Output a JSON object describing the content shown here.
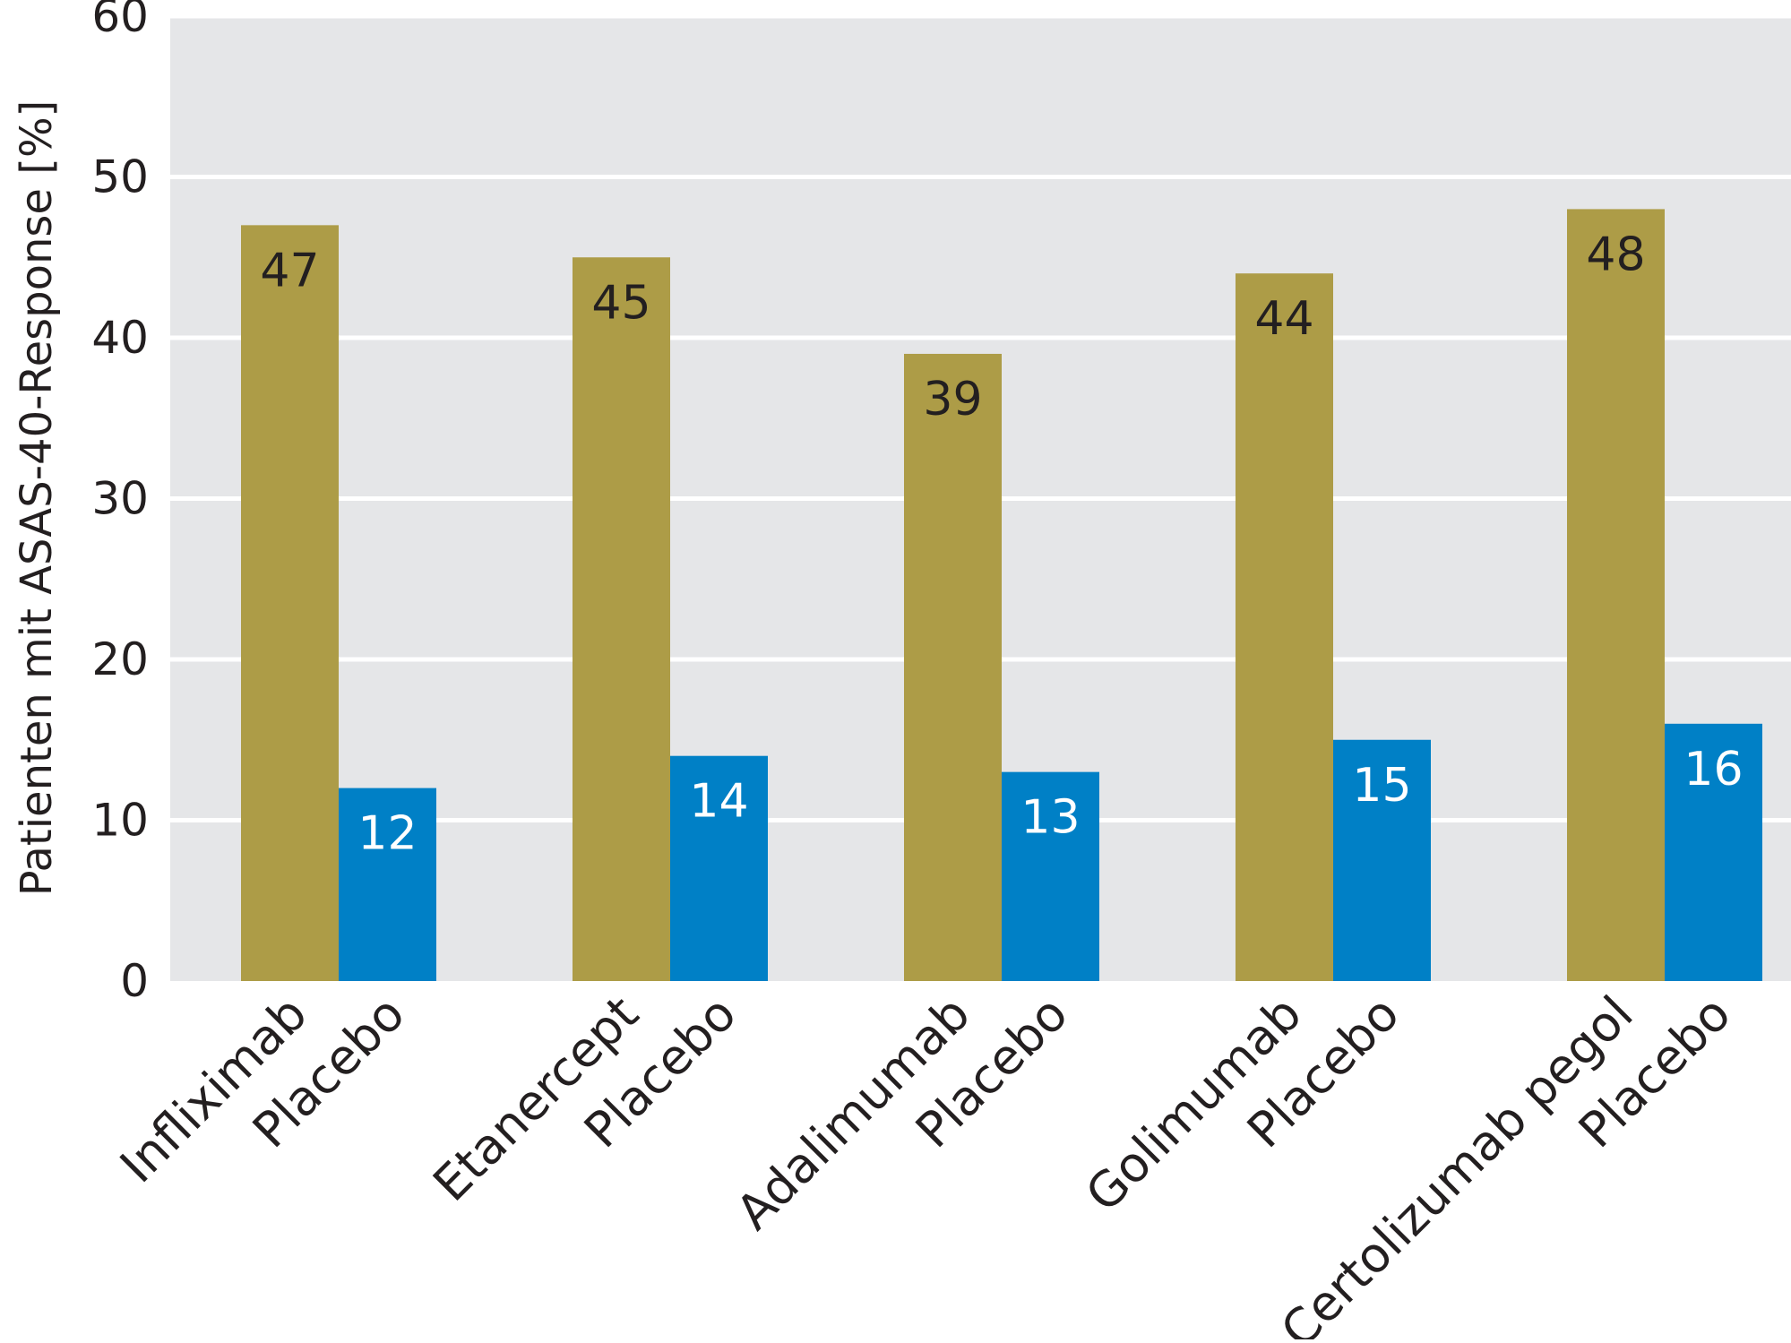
{
  "chart_data": {
    "type": "bar",
    "ylabel": "Patienten mit ASAS-40-Response [%]",
    "ylim": [
      0,
      60
    ],
    "yticks": [
      0,
      10,
      20,
      30,
      40,
      50,
      60
    ],
    "grid": true,
    "categories": [
      "Infliximab",
      "Placebo",
      "Etanercept",
      "Placebo",
      "Adalimumab",
      "Placebo",
      "Golimumab",
      "Placebo",
      "Certolizumab pegol",
      "Placebo"
    ],
    "values": [
      47,
      12,
      45,
      14,
      39,
      13,
      44,
      15,
      48,
      16
    ],
    "value_labels": [
      "47",
      "12",
      "45",
      "14",
      "39",
      "13",
      "44",
      "15",
      "48",
      "16"
    ],
    "groups": [
      {
        "drug": "Infliximab",
        "drug_value": 47,
        "placebo": "Placebo",
        "placebo_value": 12
      },
      {
        "drug": "Etanercept",
        "drug_value": 45,
        "placebo": "Placebo",
        "placebo_value": 14
      },
      {
        "drug": "Adalimumab",
        "drug_value": 39,
        "placebo": "Placebo",
        "placebo_value": 13
      },
      {
        "drug": "Golimumab",
        "drug_value": 44,
        "placebo": "Placebo",
        "placebo_value": 15
      },
      {
        "drug": "Certolizumab pegol",
        "drug_value": 48,
        "placebo": "Placebo",
        "placebo_value": 16
      }
    ],
    "colors": {
      "drug": "#AD9C47",
      "placebo": "#0080C6",
      "plot_background": "#E5E6E8",
      "gridline": "#FFFFFF",
      "text": "#231F20",
      "placebo_label": "#FFFFFF"
    }
  }
}
